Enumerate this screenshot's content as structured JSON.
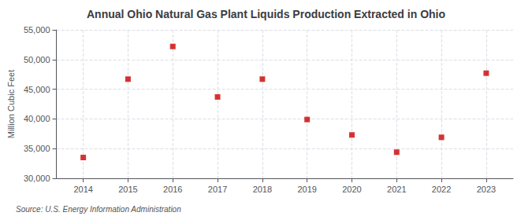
{
  "chart_data": {
    "type": "scatter",
    "title": "Annual Ohio Natural Gas Plant Liquids Production Extracted in Ohio",
    "ylabel": "Million Cubic Feet",
    "annotations": [
      "Source: U.S. Energy Information Administration"
    ],
    "x": [
      2014,
      2015,
      2016,
      2017,
      2018,
      2019,
      2020,
      2021,
      2022,
      2023
    ],
    "values": [
      33500,
      46700,
      52200,
      43700,
      46700,
      39900,
      37300,
      34400,
      36900,
      47700
    ],
    "color": "#cc0000",
    "marker": "square",
    "xlim": [
      2013.4,
      2023.6
    ],
    "xticks": [
      2014,
      2015,
      2016,
      2017,
      2018,
      2019,
      2020,
      2021,
      2022,
      2023
    ],
    "ylim": [
      30000,
      55000
    ],
    "yticks": [
      {
        "value": 30000,
        "label": "30,000"
      },
      {
        "value": 35000,
        "label": "35,000"
      },
      {
        "value": 40000,
        "label": "40,000"
      },
      {
        "value": 45000,
        "label": "45,000"
      },
      {
        "value": 50000,
        "label": "50,000"
      },
      {
        "value": 55000,
        "label": "55,000"
      }
    ],
    "grid": true
  }
}
